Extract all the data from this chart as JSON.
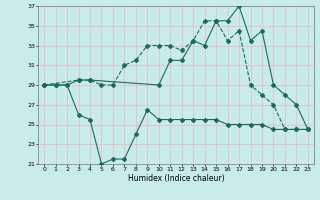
{
  "xlabel": "Humidex (Indice chaleur)",
  "xlim": [
    -0.5,
    23.5
  ],
  "ylim": [
    21,
    37
  ],
  "yticks": [
    21,
    23,
    25,
    27,
    29,
    31,
    33,
    35,
    37
  ],
  "xticks": [
    0,
    1,
    2,
    3,
    4,
    5,
    6,
    7,
    8,
    9,
    10,
    11,
    12,
    13,
    14,
    15,
    16,
    17,
    18,
    19,
    20,
    21,
    22,
    23
  ],
  "bg_color": "#c8ece9",
  "grid_color": "#f0b8b8",
  "line_color": "#1a6b5e",
  "line1_x": [
    0,
    1,
    2,
    3,
    4,
    10,
    11,
    12,
    13,
    14,
    15,
    16,
    17,
    18,
    19,
    20,
    21,
    22,
    23
  ],
  "line1_y": [
    29,
    29,
    29,
    29.5,
    29.5,
    29,
    31.5,
    31.5,
    33.5,
    33,
    35.5,
    35.5,
    37,
    33.5,
    34.5,
    29,
    28,
    27,
    24.5
  ],
  "line2_x": [
    0,
    3,
    4,
    5,
    6,
    7,
    8,
    9,
    10,
    11,
    12,
    13,
    14,
    15,
    16,
    17,
    18,
    19,
    20,
    21,
    22,
    23
  ],
  "line2_y": [
    29,
    29.5,
    29.5,
    29,
    29,
    31,
    31.5,
    33,
    33,
    33,
    32.5,
    33.5,
    35.5,
    35.5,
    33.5,
    34.5,
    29,
    28,
    27,
    24.5,
    24.5,
    24.5
  ],
  "line3_x": [
    0,
    1,
    2,
    3,
    4,
    5,
    6,
    7,
    8,
    9,
    10,
    11,
    12,
    13,
    14,
    15,
    16,
    17,
    18,
    19,
    20,
    21,
    22,
    23
  ],
  "line3_y": [
    29,
    29,
    29,
    26,
    25.5,
    21,
    21.5,
    21.5,
    24,
    26.5,
    25.5,
    25.5,
    25.5,
    25.5,
    25.5,
    25.5,
    25,
    25,
    25,
    25,
    24.5,
    24.5,
    24.5,
    24.5
  ]
}
